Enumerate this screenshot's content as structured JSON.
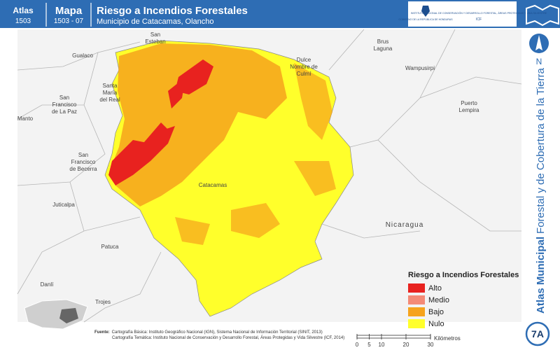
{
  "header": {
    "atlas_label": "Atlas",
    "atlas_number": "1503",
    "map_label": "Mapa",
    "map_number": "1503 - 07",
    "title": "Riesgo a Incendios Forestales",
    "subtitle": "Municipio de Catacamas, Olancho"
  },
  "logos": {
    "government": "GOBIERNO DE LA REPÚBLICA DE HONDURAS",
    "institute": "INSTITUTO NACIONAL DE CONSERVACIÓN Y DESARROLLO FORESTAL, ÁREAS PROTEGIDAS Y VIDA SILVESTRE",
    "institute_short": "ICF"
  },
  "side": {
    "north": "N",
    "title_bold": "Atlas Municipal",
    "title": "Forestal y de Cobertura de la Tierra",
    "badge": "7A"
  },
  "places": [
    {
      "lines": [
        "San",
        "Esteban"
      ]
    },
    {
      "lines": [
        "Gualaco"
      ]
    },
    {
      "lines": [
        "Dulce",
        "Nombre de",
        "Culmí"
      ]
    },
    {
      "lines": [
        "Brus",
        "Laguna"
      ]
    },
    {
      "lines": [
        "Wampusirpi"
      ]
    },
    {
      "lines": [
        "Santa",
        "María",
        "del Real"
      ]
    },
    {
      "lines": [
        "San",
        "Francisco",
        "de La Paz"
      ]
    },
    {
      "lines": [
        "Manto"
      ]
    },
    {
      "lines": [
        "Puerto",
        "Lempira"
      ]
    },
    {
      "lines": [
        "San",
        "Francisco",
        "de Becerra"
      ]
    },
    {
      "lines": [
        "Catacamas"
      ]
    },
    {
      "lines": [
        "Juticalpa"
      ]
    },
    {
      "lines": [
        "Nicaragua"
      ]
    },
    {
      "lines": [
        "Patuca"
      ]
    },
    {
      "lines": [
        "Danlí"
      ]
    },
    {
      "lines": [
        "Trojes"
      ]
    }
  ],
  "legend": {
    "title": "Riesgo a Incendios Forestales",
    "items": [
      {
        "label": "Alto",
        "color": "#e8221f"
      },
      {
        "label": "Medio",
        "color": "#f48a76"
      },
      {
        "label": "Bajo",
        "color": "#f6a31c"
      },
      {
        "label": "Nulo",
        "color": "#ffff2b"
      }
    ]
  },
  "source": {
    "label": "Fuente:",
    "line1": "Cartografía Básica: Instituto Geográfico Nacional (IGN), Sistema Nacional de Información Territorial (SINIT, 2013)",
    "line2": "Cartografía Temática: Instituto Nacional de Conservación y Desarrollo Forestal, Áreas Protegidas y Vida Silvestre (ICF, 2014)"
  },
  "scale": {
    "ticks": [
      0,
      5,
      10,
      20,
      30
    ],
    "unit": "Kilómetros"
  }
}
